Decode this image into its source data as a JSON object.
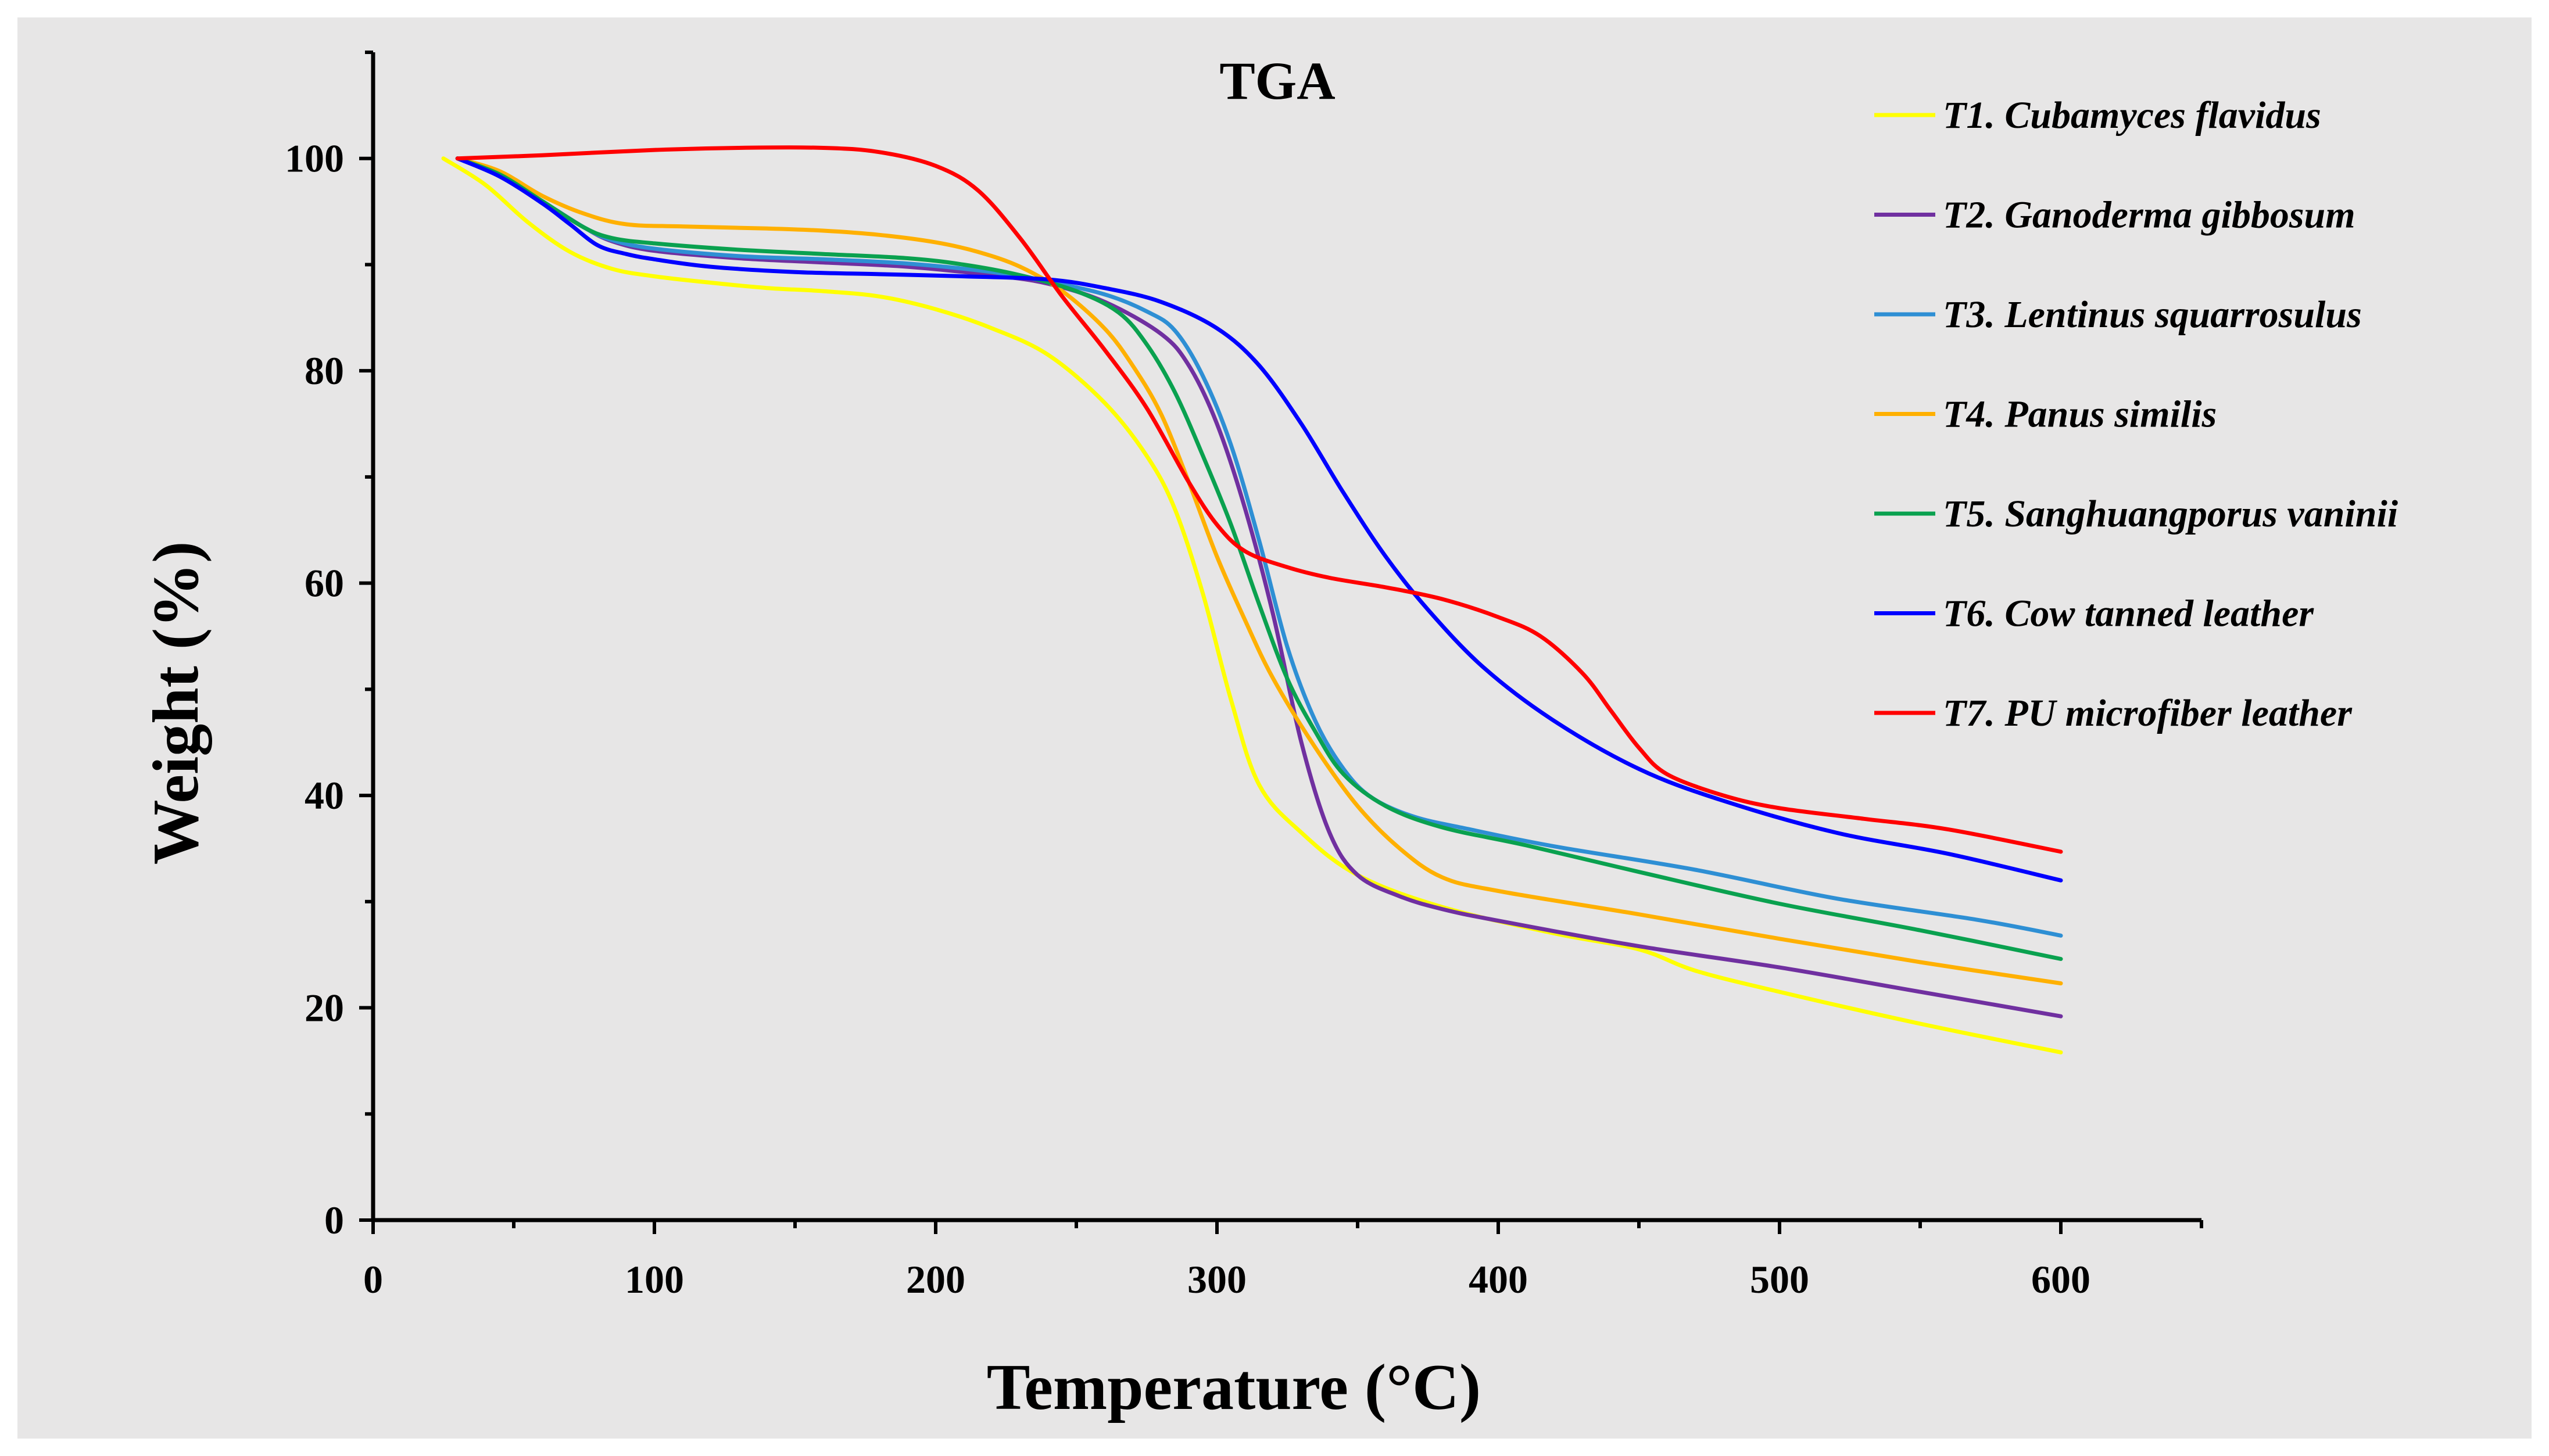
{
  "chart_data": {
    "type": "line",
    "title": "TGA",
    "xlabel": "Temperature (°C)",
    "ylabel": "Weight (%)",
    "xlim": [
      0,
      650
    ],
    "ylim": [
      0,
      110
    ],
    "xticks": [
      0,
      100,
      200,
      300,
      400,
      500,
      600
    ],
    "yticks": [
      0,
      20,
      40,
      60,
      80,
      100
    ],
    "grid": false,
    "legend_position": "top-right",
    "series": [
      {
        "name": "T1. Cubamyces flavidus",
        "color": "#ffff00",
        "x": [
          25,
          40,
          55,
          70,
          85,
          100,
          120,
          140,
          160,
          180,
          200,
          220,
          240,
          260,
          275,
          285,
          295,
          305,
          315,
          330,
          350,
          380,
          420,
          450,
          470,
          500,
          550,
          600
        ],
        "y": [
          100,
          97.5,
          94,
          91.2,
          89.6,
          88.9,
          88.3,
          87.8,
          87.5,
          87,
          85.8,
          84,
          81.5,
          77,
          72,
          67,
          59,
          49,
          41,
          36.5,
          32.5,
          29.5,
          27,
          25.5,
          23.5,
          21.5,
          18.5,
          15.8
        ]
      },
      {
        "name": "T2. Ganoderma gibbosum",
        "color": "#7030a0",
        "x": [
          30,
          45,
          60,
          75,
          85,
          100,
          130,
          160,
          190,
          220,
          240,
          260,
          280,
          290,
          300,
          310,
          320,
          330,
          340,
          350,
          365,
          380,
          400,
          450,
          500,
          550,
          600
        ],
        "y": [
          100,
          98.5,
          96,
          93.5,
          92.2,
          91.3,
          90.6,
          90.2,
          89.8,
          89,
          88.2,
          86.5,
          83.5,
          80.5,
          75,
          67,
          57,
          45,
          36.5,
          32.5,
          30.5,
          29.3,
          28.2,
          25.8,
          23.8,
          21.5,
          19.2
        ]
      },
      {
        "name": "T3. Lentinus squarrosulus",
        "color": "#2e8fd4",
        "x": [
          30,
          45,
          60,
          75,
          85,
          100,
          130,
          160,
          190,
          220,
          240,
          260,
          275,
          285,
          295,
          305,
          315,
          325,
          335,
          345,
          355,
          370,
          390,
          420,
          470,
          520,
          570,
          600
        ],
        "y": [
          100,
          98.5,
          96,
          93.5,
          92.3,
          91.5,
          90.8,
          90.5,
          90.1,
          89.3,
          88.4,
          87.2,
          85.6,
          83.8,
          79.5,
          73,
          64,
          54,
          47,
          42.5,
          39.8,
          38,
          36.8,
          35.2,
          33,
          30.3,
          28.3,
          26.8
        ]
      },
      {
        "name": "T4. Panus similis",
        "color": "#ffb000",
        "x": [
          30,
          45,
          60,
          75,
          90,
          110,
          140,
          160,
          180,
          200,
          215,
          230,
          245,
          260,
          270,
          280,
          290,
          300,
          310,
          320,
          335,
          350,
          365,
          380,
          400,
          450,
          500,
          550,
          600
        ],
        "y": [
          100,
          98.8,
          96.5,
          94.8,
          93.8,
          93.6,
          93.4,
          93.2,
          92.8,
          92.1,
          91.2,
          89.8,
          87.5,
          84,
          80.5,
          76,
          69.5,
          62.5,
          56.5,
          51,
          44.5,
          39,
          35,
          32.3,
          31,
          28.8,
          26.5,
          24.3,
          22.3
        ]
      },
      {
        "name": "T5. Sanghuangporus vaninii",
        "color": "#0aa14f",
        "x": [
          30,
          45,
          60,
          75,
          85,
          100,
          130,
          160,
          190,
          210,
          230,
          250,
          265,
          275,
          285,
          295,
          305,
          315,
          325,
          335,
          345,
          360,
          380,
          410,
          450,
          500,
          550,
          600
        ],
        "y": [
          100,
          98.5,
          96,
          93.5,
          92.5,
          92,
          91.4,
          91,
          90.6,
          90,
          89,
          87.5,
          85.5,
          82.5,
          78,
          72,
          65.5,
          58,
          51,
          46,
          42,
          39,
          37,
          35.3,
          32.8,
          29.8,
          27.3,
          24.6
        ]
      },
      {
        "name": "T6. Cow tanned leather",
        "color": "#0000ff",
        "x": [
          30,
          45,
          60,
          70,
          80,
          90,
          100,
          120,
          150,
          180,
          210,
          240,
          260,
          280,
          300,
          315,
          330,
          345,
          360,
          375,
          395,
          420,
          450,
          480,
          520,
          560,
          600
        ],
        "y": [
          100,
          98.3,
          95.8,
          93.8,
          91.8,
          91,
          90.5,
          89.8,
          89.3,
          89.1,
          88.9,
          88.6,
          87.8,
          86.5,
          84,
          80.5,
          75,
          68.5,
          62.5,
          57.5,
          52,
          47,
          42.5,
          39.5,
          36.5,
          34.5,
          32
        ]
      },
      {
        "name": "T7. PU microfiber leather",
        "color": "#ff0000",
        "x": [
          30,
          60,
          100,
          130,
          160,
          180,
          200,
          215,
          230,
          245,
          260,
          275,
          290,
          300,
          310,
          325,
          340,
          360,
          380,
          400,
          415,
          430,
          440,
          450,
          460,
          480,
          500,
          530,
          560,
          600
        ],
        "y": [
          100,
          100.3,
          100.8,
          101,
          101,
          100.6,
          99.3,
          97,
          92.5,
          87,
          82,
          76.5,
          69.5,
          65.5,
          63,
          61.5,
          60.5,
          59.6,
          58.5,
          56.8,
          55,
          51.5,
          48,
          44.5,
          42,
          40,
          38.8,
          37.8,
          36.8,
          34.7
        ]
      }
    ]
  }
}
